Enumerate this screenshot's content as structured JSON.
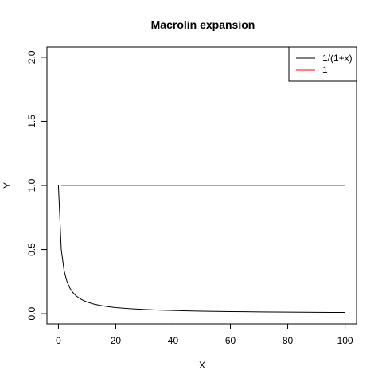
{
  "chart_data": {
    "type": "line",
    "title": "Macrolin expansion",
    "xlabel": "X",
    "ylabel": "Y",
    "xlim": [
      -4,
      104
    ],
    "ylim": [
      -0.08,
      2.08
    ],
    "x_ticks": [
      0,
      20,
      40,
      60,
      80,
      100
    ],
    "y_ticks": [
      0.0,
      0.5,
      1.0,
      1.5,
      2.0
    ],
    "x_tick_labels": [
      "0",
      "20",
      "40",
      "60",
      "80",
      "100"
    ],
    "y_tick_labels": [
      "0.0",
      "0.5",
      "1.0",
      "1.5",
      "2.0"
    ],
    "grid": false,
    "legend_position": "top-right",
    "series": [
      {
        "name": "1/(1+x)",
        "color": "#000000",
        "x": [
          0,
          1,
          2,
          3,
          4,
          5,
          6,
          7,
          8,
          9,
          10,
          12,
          14,
          16,
          18,
          20,
          25,
          30,
          35,
          40,
          45,
          50,
          55,
          60,
          65,
          70,
          75,
          80,
          85,
          90,
          95,
          100
        ],
        "y": [
          1.0,
          0.5,
          0.3333,
          0.25,
          0.2,
          0.1667,
          0.1429,
          0.125,
          0.1111,
          0.1,
          0.0909,
          0.0769,
          0.0667,
          0.0588,
          0.0526,
          0.0476,
          0.0385,
          0.0323,
          0.0278,
          0.0244,
          0.0217,
          0.0196,
          0.0179,
          0.0164,
          0.0152,
          0.0141,
          0.0132,
          0.0123,
          0.0116,
          0.011,
          0.0104,
          0.0099
        ]
      },
      {
        "name": "1",
        "color": "#ff0000",
        "x": [
          1,
          100
        ],
        "y": [
          1.0,
          1.0
        ]
      }
    ]
  }
}
